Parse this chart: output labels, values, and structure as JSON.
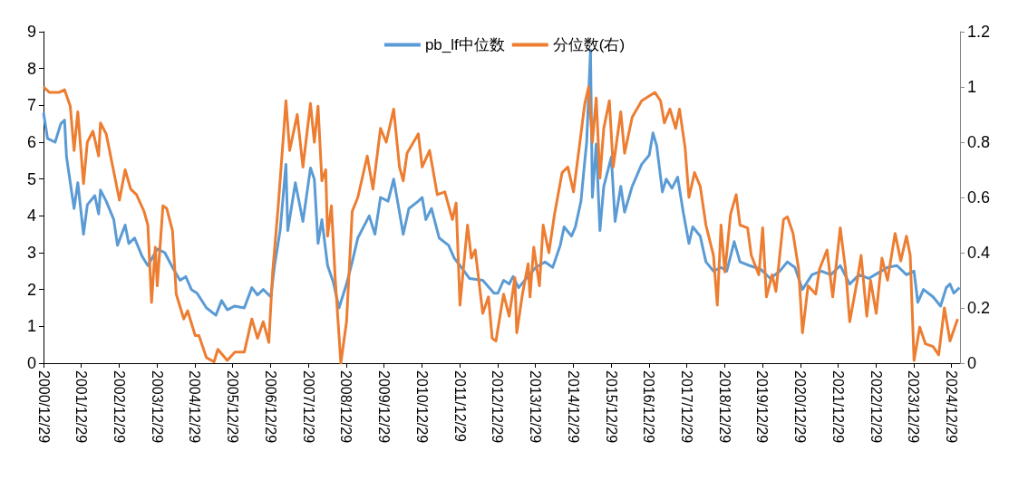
{
  "chart_data": {
    "type": "line",
    "legend": "top",
    "grid": false,
    "marker": "none",
    "line_style": "solid",
    "xlim": [
      "2000-12-29",
      "2025-03-20"
    ],
    "xticks": [
      {
        "value": "2000-12-29",
        "label": "2000/12/29"
      },
      {
        "value": "2001-12-29",
        "label": "2001/12/29"
      },
      {
        "value": "2002-12-29",
        "label": "2002/12/29"
      },
      {
        "value": "2003-12-29",
        "label": "2003/12/29"
      },
      {
        "value": "2004-12-29",
        "label": "2004/12/29"
      },
      {
        "value": "2005-12-29",
        "label": "2005/12/29"
      },
      {
        "value": "2006-12-29",
        "label": "2006/12/29"
      },
      {
        "value": "2007-12-29",
        "label": "2007/12/29"
      },
      {
        "value": "2008-12-29",
        "label": "2008/12/29"
      },
      {
        "value": "2009-12-29",
        "label": "2009/12/29"
      },
      {
        "value": "2010-12-29",
        "label": "2010/12/29"
      },
      {
        "value": "2011-12-29",
        "label": "2011/12/29"
      },
      {
        "value": "2012-12-29",
        "label": "2012/12/29"
      },
      {
        "value": "2013-12-29",
        "label": "2013/12/29"
      },
      {
        "value": "2014-12-29",
        "label": "2014/12/29"
      },
      {
        "value": "2015-12-29",
        "label": "2015/12/29"
      },
      {
        "value": "2016-12-29",
        "label": "2016/12/29"
      },
      {
        "value": "2017-12-29",
        "label": "2017/12/29"
      },
      {
        "value": "2018-12-29",
        "label": "2018/12/29"
      },
      {
        "value": "2019-12-29",
        "label": "2019/12/29"
      },
      {
        "value": "2020-12-29",
        "label": "2020/12/29"
      },
      {
        "value": "2021-12-29",
        "label": "2021/12/29"
      },
      {
        "value": "2022-12-29",
        "label": "2022/12/29"
      },
      {
        "value": "2023-12-29",
        "label": "2023/12/29"
      },
      {
        "value": "2024-12-29",
        "label": "2024/12/29"
      }
    ],
    "ylim": [
      0,
      9
    ],
    "yticks": [
      0,
      1,
      2,
      3,
      4,
      5,
      6,
      7,
      8,
      9
    ],
    "y2lim": [
      0,
      1.2
    ],
    "y2ticks": [
      0,
      0.2,
      0.4,
      0.6,
      0.8,
      1,
      1.2
    ],
    "series": [
      {
        "name": "pb_lf中位数",
        "color": "#5b9bd5",
        "x": [
          "2000-12-29",
          "2001-02-06",
          "2001-04-20",
          "2001-06-14",
          "2001-07-20",
          "2001-08-08",
          "2001-10-20",
          "2001-11-25",
          "2002-01-19",
          "2002-02-25",
          "2002-05-08",
          "2002-06-14",
          "2002-07-02",
          "2002-08-26",
          "2002-11-07",
          "2002-12-13",
          "2003-02-25",
          "2003-04-01",
          "2003-05-27",
          "2003-08-08",
          "2003-10-02",
          "2004-01-01",
          "2004-03-14",
          "2004-05-27",
          "2004-08-08",
          "2004-10-02",
          "2004-11-25",
          "2005-01-19",
          "2005-04-20",
          "2005-07-20",
          "2005-09-13",
          "2005-11-07",
          "2006-01-19",
          "2006-04-20",
          "2006-07-02",
          "2006-08-26",
          "2006-10-20",
          "2007-01-01",
          "2007-02-06",
          "2007-04-01",
          "2007-05-27",
          "2007-06-14",
          "2007-08-26",
          "2007-11-07",
          "2008-01-19",
          "2008-02-25",
          "2008-04-01",
          "2008-05-08",
          "2008-07-02",
          "2008-08-26",
          "2008-10-20",
          "2009-01-01",
          "2009-02-25",
          "2009-04-20",
          "2009-08-08",
          "2009-10-02",
          "2009-11-25",
          "2010-02-06",
          "2010-04-01",
          "2010-05-27",
          "2010-07-02",
          "2010-08-26",
          "2010-11-25",
          "2011-01-01",
          "2011-02-06",
          "2011-04-01",
          "2011-06-14",
          "2011-09-13",
          "2011-11-07",
          "2012-01-01",
          "2012-04-01",
          "2012-08-08",
          "2012-11-25",
          "2013-01-01",
          "2013-02-25",
          "2013-04-20",
          "2013-05-27",
          "2013-07-20",
          "2013-10-02",
          "2014-01-01",
          "2014-04-01",
          "2014-06-14",
          "2014-08-26",
          "2014-10-02",
          "2014-12-13",
          "2015-01-19",
          "2015-03-14",
          "2015-04-20",
          "2015-05-08",
          "2015-06-14",
          "2015-07-02",
          "2015-08-08",
          "2015-09-13",
          "2015-10-20",
          "2016-01-01",
          "2016-02-06",
          "2016-04-01",
          "2016-05-08",
          "2016-07-20",
          "2016-10-20",
          "2017-01-01",
          "2017-02-06",
          "2017-03-14",
          "2017-05-08",
          "2017-06-14",
          "2017-08-08",
          "2017-10-02",
          "2017-11-25",
          "2018-01-19",
          "2018-02-25",
          "2018-05-08",
          "2018-07-02",
          "2018-09-13",
          "2018-11-25",
          "2019-01-19",
          "2019-04-01",
          "2019-05-27",
          "2019-08-26",
          "2019-12-13",
          "2020-03-14",
          "2020-06-14",
          "2020-08-26",
          "2020-11-07",
          "2021-01-19",
          "2021-04-20",
          "2021-07-20",
          "2021-10-20",
          "2022-01-19",
          "2022-04-20",
          "2022-07-20",
          "2022-10-20",
          "2023-01-19",
          "2023-04-20",
          "2023-07-20",
          "2023-10-20",
          "2024-01-01",
          "2024-02-06",
          "2024-04-01",
          "2024-07-02",
          "2024-09-13",
          "2024-11-07",
          "2024-12-13",
          "2025-01-19",
          "2025-03-14"
        ],
        "values": [
          6.8,
          6.1,
          6.0,
          6.5,
          6.6,
          5.6,
          4.2,
          4.9,
          3.5,
          4.3,
          4.55,
          4.05,
          4.7,
          4.4,
          3.9,
          3.2,
          3.75,
          3.25,
          3.4,
          2.9,
          2.65,
          3.1,
          3.0,
          2.6,
          2.25,
          2.35,
          2.0,
          1.9,
          1.5,
          1.3,
          1.7,
          1.45,
          1.55,
          1.5,
          2.05,
          1.85,
          2.0,
          1.8,
          2.65,
          3.6,
          5.4,
          3.6,
          4.9,
          3.85,
          5.3,
          5.0,
          3.25,
          3.9,
          2.65,
          2.2,
          1.5,
          2.15,
          2.75,
          3.4,
          4.0,
          3.5,
          4.5,
          4.4,
          5.0,
          4.1,
          3.5,
          4.2,
          4.4,
          4.5,
          3.9,
          4.2,
          3.4,
          3.2,
          2.85,
          2.65,
          2.3,
          2.25,
          1.9,
          1.9,
          2.25,
          2.15,
          2.35,
          2.05,
          2.3,
          2.6,
          2.75,
          2.6,
          3.2,
          3.7,
          3.45,
          3.7,
          4.4,
          5.5,
          6.0,
          8.5,
          4.5,
          5.95,
          3.6,
          4.8,
          5.6,
          3.85,
          4.8,
          4.1,
          4.8,
          5.4,
          5.65,
          6.25,
          5.9,
          4.65,
          5.0,
          4.75,
          5.05,
          4.1,
          3.25,
          3.7,
          3.45,
          2.75,
          2.5,
          2.6,
          2.5,
          3.3,
          2.75,
          2.65,
          2.55,
          2.3,
          2.5,
          2.75,
          2.6,
          2.0,
          2.4,
          2.5,
          2.4,
          2.65,
          2.15,
          2.4,
          2.3,
          2.45,
          2.6,
          2.65,
          2.4,
          2.5,
          1.65,
          2.0,
          1.8,
          1.55,
          2.05,
          2.15,
          1.9,
          2.05
        ]
      },
      {
        "name": "分位数(右)",
        "color": "#ed7d31",
        "axis": "y2",
        "x": [
          "2000-12-29",
          "2001-02-25",
          "2001-05-27",
          "2001-07-20",
          "2001-09-13",
          "2001-10-20",
          "2001-11-25",
          "2002-01-19",
          "2002-02-25",
          "2002-04-20",
          "2002-06-14",
          "2002-07-02",
          "2002-08-26",
          "2002-11-25",
          "2003-01-01",
          "2003-02-25",
          "2003-04-20",
          "2003-06-14",
          "2003-08-26",
          "2003-10-02",
          "2003-11-07",
          "2003-12-13",
          "2004-01-01",
          "2004-02-25",
          "2004-04-01",
          "2004-05-27",
          "2004-07-02",
          "2004-09-13",
          "2004-10-20",
          "2005-01-01",
          "2005-02-06",
          "2005-04-20",
          "2005-07-02",
          "2005-08-08",
          "2005-11-07",
          "2006-01-19",
          "2006-04-20",
          "2006-07-02",
          "2006-08-26",
          "2006-10-20",
          "2006-12-13",
          "2007-01-19",
          "2007-03-14",
          "2007-05-08",
          "2007-05-27",
          "2007-07-02",
          "2007-09-13",
          "2007-11-07",
          "2008-01-19",
          "2008-02-25",
          "2008-04-01",
          "2008-05-08",
          "2008-06-14",
          "2008-07-02",
          "2008-08-08",
          "2008-09-13",
          "2008-11-07",
          "2009-01-01",
          "2009-02-25",
          "2009-04-20",
          "2009-07-20",
          "2009-09-13",
          "2009-11-25",
          "2010-01-19",
          "2010-04-01",
          "2010-05-27",
          "2010-07-02",
          "2010-08-08",
          "2010-11-25",
          "2011-01-01",
          "2011-03-14",
          "2011-05-27",
          "2011-08-08",
          "2011-10-20",
          "2011-11-25",
          "2012-01-01",
          "2012-03-14",
          "2012-04-20",
          "2012-05-27",
          "2012-08-08",
          "2012-10-02",
          "2012-11-07",
          "2012-12-13",
          "2013-02-25",
          "2013-04-20",
          "2013-06-14",
          "2013-07-02",
          "2013-08-26",
          "2013-10-20",
          "2013-11-07",
          "2013-12-13",
          "2014-02-06",
          "2014-03-14",
          "2014-05-08",
          "2014-07-02",
          "2014-09-13",
          "2014-11-07",
          "2015-01-01",
          "2015-02-25",
          "2015-04-20",
          "2015-05-27",
          "2015-07-02",
          "2015-08-08",
          "2015-09-13",
          "2015-10-20",
          "2015-12-13",
          "2016-01-19",
          "2016-04-01",
          "2016-05-08",
          "2016-07-20",
          "2016-10-20",
          "2017-02-25",
          "2017-04-20",
          "2017-05-27",
          "2017-07-20",
          "2017-09-13",
          "2017-10-20",
          "2017-12-13",
          "2018-01-19",
          "2018-03-14",
          "2018-05-08",
          "2018-07-02",
          "2018-09-13",
          "2018-10-20",
          "2018-11-25",
          "2019-01-01",
          "2019-02-25",
          "2019-04-20",
          "2019-05-27",
          "2019-08-08",
          "2019-09-13",
          "2019-11-25",
          "2020-01-01",
          "2020-02-06",
          "2020-04-01",
          "2020-05-08",
          "2020-07-20",
          "2020-08-26",
          "2020-10-20",
          "2020-12-13",
          "2021-01-19",
          "2021-03-14",
          "2021-05-27",
          "2021-07-02",
          "2021-09-13",
          "2021-11-07",
          "2022-01-19",
          "2022-03-14",
          "2022-04-20",
          "2022-07-02",
          "2022-08-08",
          "2022-10-02",
          "2022-11-07",
          "2023-01-01",
          "2023-02-25",
          "2023-04-20",
          "2023-07-02",
          "2023-08-26",
          "2023-10-20",
          "2023-11-25",
          "2024-01-01",
          "2024-02-25",
          "2024-04-20",
          "2024-07-02",
          "2024-08-26",
          "2024-10-20",
          "2024-12-13",
          "2025-02-25"
        ],
        "values": [
          1.0,
          0.98,
          0.98,
          0.99,
          0.93,
          0.77,
          0.91,
          0.65,
          0.8,
          0.84,
          0.75,
          0.87,
          0.83,
          0.66,
          0.59,
          0.7,
          0.63,
          0.61,
          0.55,
          0.5,
          0.22,
          0.42,
          0.28,
          0.57,
          0.56,
          0.48,
          0.25,
          0.16,
          0.19,
          0.1,
          0.1,
          0.02,
          0.005,
          0.05,
          0.01,
          0.04,
          0.04,
          0.16,
          0.09,
          0.15,
          0.075,
          0.33,
          0.57,
          0.85,
          0.95,
          0.77,
          0.9,
          0.71,
          0.94,
          0.8,
          0.93,
          0.66,
          0.7,
          0.46,
          0.57,
          0.31,
          0.0,
          0.15,
          0.55,
          0.6,
          0.75,
          0.63,
          0.85,
          0.8,
          0.92,
          0.71,
          0.66,
          0.76,
          0.83,
          0.71,
          0.77,
          0.61,
          0.62,
          0.52,
          0.58,
          0.21,
          0.5,
          0.38,
          0.41,
          0.18,
          0.24,
          0.09,
          0.08,
          0.25,
          0.17,
          0.31,
          0.11,
          0.25,
          0.36,
          0.24,
          0.42,
          0.28,
          0.5,
          0.4,
          0.54,
          0.69,
          0.71,
          0.62,
          0.78,
          0.94,
          1.0,
          0.8,
          0.96,
          0.67,
          0.85,
          0.95,
          0.71,
          0.91,
          0.76,
          0.89,
          0.95,
          0.98,
          0.95,
          0.87,
          0.92,
          0.85,
          0.92,
          0.78,
          0.6,
          0.69,
          0.64,
          0.5,
          0.39,
          0.21,
          0.5,
          0.33,
          0.54,
          0.61,
          0.5,
          0.49,
          0.39,
          0.32,
          0.49,
          0.24,
          0.32,
          0.26,
          0.52,
          0.53,
          0.47,
          0.34,
          0.11,
          0.28,
          0.25,
          0.34,
          0.41,
          0.24,
          0.49,
          0.33,
          0.15,
          0.3,
          0.39,
          0.17,
          0.3,
          0.18,
          0.38,
          0.3,
          0.47,
          0.37,
          0.46,
          0.39,
          0.01,
          0.13,
          0.07,
          0.06,
          0.03,
          0.2,
          0.08,
          0.16
        ]
      }
    ]
  }
}
